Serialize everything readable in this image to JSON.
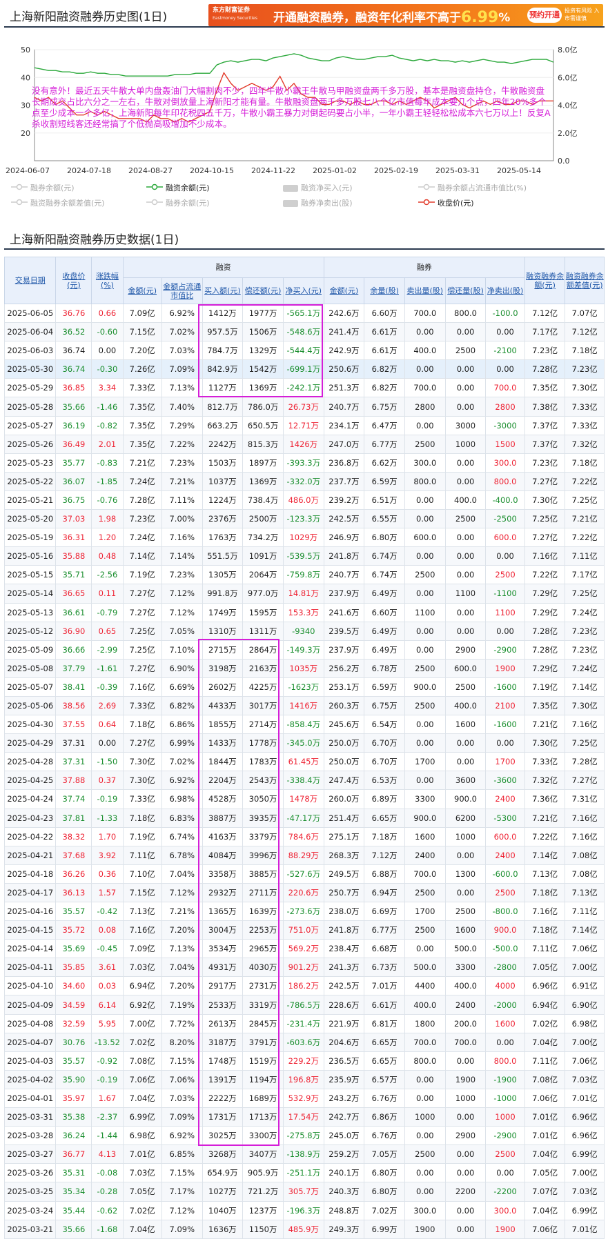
{
  "header": {
    "title": "上海新阳融资融券历史图(1日)"
  },
  "ad": {
    "brand": "东方财富证券",
    "brand_en": "Eastmoney Securities",
    "main_pre": "开通融资融券，融资年化利率不高于",
    "rate": "6.99",
    "pct_sign": "%",
    "cta": "预约开通",
    "risk": "投资有风险 入市需谨慎"
  },
  "chart_data": {
    "type": "line",
    "x_ticks": [
      "2024-06-07",
      "2024-07-18",
      "2024-08-27",
      "2024-10-15",
      "2024-11-22",
      "2025-01-02",
      "2025-02-19",
      "2025-03-31",
      "2025-05-14"
    ],
    "y_left": {
      "ticks": [
        "50",
        "40",
        "30",
        "20"
      ],
      "lim": [
        20,
        50
      ]
    },
    "y_right": {
      "ticks": [
        "8.0亿",
        "6.0亿",
        "4.0亿",
        "2.0亿",
        "0.0"
      ],
      "lim": [
        0,
        8
      ]
    },
    "series": [
      {
        "name": "融资余额(元)",
        "axis": "right",
        "color": "#2aa83a",
        "values": [
          6.7,
          6.6,
          6.5,
          6.5,
          6.4,
          6.4,
          6.3,
          6.3,
          6.4,
          6.3,
          6.3,
          6.2,
          6.2,
          6.1,
          6.1,
          6.1,
          6.1,
          6.1,
          6.1,
          6.1,
          6.2,
          6.2,
          6.2,
          6.3,
          6.3,
          6.3,
          6.9,
          7.1,
          7.2,
          7.1,
          7.2,
          7.3,
          7.3,
          7.2,
          7.4,
          7.5,
          7.6,
          7.7,
          7.6,
          7.4,
          7.3,
          7.2,
          7.2,
          7.4,
          7.5,
          7.4,
          7.3,
          7.3,
          7.4,
          7.5,
          7.5,
          7.6,
          7.4,
          7.3,
          7.2,
          7.3,
          7.2,
          7.3,
          7.2,
          7.2,
          7.1,
          7.2,
          7.1,
          7.2,
          7.3,
          7.2,
          7.1,
          7.1,
          7.0,
          7.1,
          7.2,
          7.3,
          7.3,
          7.3,
          7.1
        ]
      },
      {
        "name": "收盘价(元)",
        "axis": "left",
        "color": "#e23a2a",
        "values": [
          38,
          37,
          38,
          36,
          37,
          35,
          33,
          33,
          34,
          33,
          34,
          33,
          32,
          32,
          32,
          32,
          31,
          33,
          32,
          32,
          31,
          32,
          31,
          32,
          33,
          34,
          40,
          45,
          42,
          40,
          41,
          42,
          41,
          40,
          41,
          44,
          40,
          42,
          39,
          38,
          38,
          36,
          36,
          37,
          37,
          36,
          37,
          36,
          36,
          37,
          37,
          36,
          37,
          36,
          37,
          38,
          37,
          35,
          36,
          37,
          38,
          36,
          35,
          36,
          37,
          36,
          37,
          36,
          36,
          37,
          37,
          36,
          37,
          37,
          37
        ]
      }
    ],
    "annotation": "没有意外！最近五天牛散大单内盘轰油门大幅割肉不少，四年牛散小霸王牛散马甲融资盘两千多万股，基本是融资盘持仓，牛散融资盘长期成交占比六分之一左右，牛散对倒放量上海新阳才能有量。牛散融资盘两千多万股七八个亿市值每年成本要几个点，四年20%多个点至少成本一个多亿；上海新阳每年印花税四五千万，牛散小霸王暴力对倒起码要占小半，一年小霸王轻轻松松成本六七万以上！反复A杀收割短线客还经常搞了个低抛高吸增加不少成本。",
    "legend": [
      "融券余额(元)",
      "融资余额(元)",
      "融资净买入(元)",
      "融券余额占流通市值比(%)",
      "融资融券余额差值(元)",
      "融券余额(元)",
      "融券净卖出(股)",
      "收盘价(元)"
    ]
  },
  "section2": {
    "title": "上海新阳融资融券历史数据(1日)"
  },
  "table": {
    "group_rz": "融资",
    "group_rq": "融券",
    "h_date": "交易日期",
    "h_close": "收盘价(元)",
    "h_chg": "涨跌幅(%)",
    "h_rz_amt": "金额(元)",
    "h_rz_ratio": "金额占流通市值比",
    "h_buy": "买入额(元)",
    "h_repay": "偿还额(元)",
    "h_net": "净买入(元)",
    "h_rq_amt": "金额(元)",
    "h_rq_vol": "余量(股)",
    "h_sell": "卖出量(股)",
    "h_rq_repay": "偿还量(股)",
    "h_rq_net": "净卖出(股)",
    "h_total": "融资融券余额(元)",
    "h_diff": "融资融券余额差值(元)",
    "rows": [
      [
        "2025-06-05",
        "36.76",
        "0.66",
        "7.09亿",
        "6.92%",
        "1412万",
        "1977万",
        "-565.1万",
        "242.6万",
        "6.60万",
        "700.0",
        "800.0",
        "-100.0",
        "7.12亿",
        "7.07亿"
      ],
      [
        "2025-06-04",
        "36.52",
        "-0.60",
        "7.15亿",
        "7.02%",
        "957.5万",
        "1506万",
        "-548.6万",
        "241.4万",
        "6.61万",
        "0.00",
        "0.00",
        "0.00",
        "7.17亿",
        "7.12亿"
      ],
      [
        "2025-06-03",
        "36.74",
        "0.00",
        "7.20亿",
        "7.03%",
        "784.7万",
        "1329万",
        "-544.4万",
        "242.9万",
        "6.61万",
        "400.0",
        "2500",
        "-2100",
        "7.23亿",
        "7.18亿"
      ],
      [
        "2025-05-30",
        "36.74",
        "-0.30",
        "7.26亿",
        "7.09%",
        "842.9万",
        "1542万",
        "-699.1万",
        "250.6万",
        "6.82万",
        "0.00",
        "0.00",
        "0.00",
        "7.28亿",
        "7.23亿"
      ],
      [
        "2025-05-29",
        "36.85",
        "3.34",
        "7.33亿",
        "7.13%",
        "1127万",
        "1369万",
        "-242.1万",
        "251.3万",
        "6.82万",
        "700.0",
        "0.00",
        "700.0",
        "7.35亿",
        "7.30亿"
      ],
      [
        "2025-05-28",
        "35.66",
        "-1.46",
        "7.35亿",
        "7.40%",
        "812.7万",
        "786.0万",
        "26.73万",
        "240.7万",
        "6.75万",
        "2800",
        "0.00",
        "2800",
        "7.38亿",
        "7.33亿"
      ],
      [
        "2025-05-27",
        "36.19",
        "-0.82",
        "7.35亿",
        "7.29%",
        "663.2万",
        "650.5万",
        "12.71万",
        "234.1万",
        "6.47万",
        "0.00",
        "3000",
        "-3000",
        "7.37亿",
        "7.33亿"
      ],
      [
        "2025-05-26",
        "36.49",
        "2.01",
        "7.35亿",
        "7.22%",
        "2242万",
        "815.3万",
        "1426万",
        "247.0万",
        "6.77万",
        "2500",
        "1000",
        "1500",
        "7.37亿",
        "7.32亿"
      ],
      [
        "2025-05-23",
        "35.77",
        "-0.83",
        "7.21亿",
        "7.23%",
        "1503万",
        "1897万",
        "-393.3万",
        "236.8万",
        "6.62万",
        "300.0",
        "0.00",
        "300.0",
        "7.23亿",
        "7.18亿"
      ],
      [
        "2025-05-22",
        "36.07",
        "-1.85",
        "7.24亿",
        "7.21%",
        "1037万",
        "1369万",
        "-332.0万",
        "237.7万",
        "6.59万",
        "800.0",
        "0.00",
        "800.0",
        "7.27亿",
        "7.22亿"
      ],
      [
        "2025-05-21",
        "36.75",
        "-0.76",
        "7.28亿",
        "7.11%",
        "1224万",
        "738.4万",
        "486.0万",
        "239.2万",
        "6.51万",
        "0.00",
        "400.0",
        "-400.0",
        "7.30亿",
        "7.25亿"
      ],
      [
        "2025-05-20",
        "37.03",
        "1.98",
        "7.23亿",
        "7.00%",
        "2376万",
        "2500万",
        "-123.3万",
        "242.5万",
        "6.55万",
        "0.00",
        "2500",
        "-2500",
        "7.25亿",
        "7.21亿"
      ],
      [
        "2025-05-19",
        "36.31",
        "1.20",
        "7.24亿",
        "7.16%",
        "1763万",
        "734.2万",
        "1029万",
        "246.9万",
        "6.80万",
        "600.0",
        "0.00",
        "600.0",
        "7.27亿",
        "7.22亿"
      ],
      [
        "2025-05-16",
        "35.88",
        "0.48",
        "7.14亿",
        "7.14%",
        "551.5万",
        "1091万",
        "-539.5万",
        "241.8万",
        "6.74万",
        "0.00",
        "0.00",
        "0.00",
        "7.16亿",
        "7.11亿"
      ],
      [
        "2025-05-15",
        "35.71",
        "-2.56",
        "7.19亿",
        "7.23%",
        "1305万",
        "2064万",
        "-759.8万",
        "240.7万",
        "6.74万",
        "2500",
        "0.00",
        "2500",
        "7.22亿",
        "7.17亿"
      ],
      [
        "2025-05-14",
        "36.65",
        "0.11",
        "7.27亿",
        "7.12%",
        "991.8万",
        "977.0万",
        "14.81万",
        "237.9万",
        "6.49万",
        "0.00",
        "1100",
        "-1100",
        "7.29亿",
        "7.25亿"
      ],
      [
        "2025-05-13",
        "36.61",
        "-0.79",
        "7.27亿",
        "7.12%",
        "1749万",
        "1595万",
        "153.3万",
        "241.6万",
        "6.60万",
        "1100",
        "0.00",
        "1100",
        "7.29亿",
        "7.24亿"
      ],
      [
        "2025-05-12",
        "36.90",
        "0.65",
        "7.25亿",
        "7.05%",
        "1310万",
        "1311万",
        "-9340",
        "239.5万",
        "6.49万",
        "0.00",
        "0.00",
        "0.00",
        "7.28亿",
        "7.23亿"
      ],
      [
        "2025-05-09",
        "36.66",
        "-2.99",
        "7.25亿",
        "7.10%",
        "2715万",
        "2864万",
        "-149.3万",
        "237.9万",
        "6.49万",
        "0.00",
        "2900",
        "-2900",
        "7.28亿",
        "7.23亿"
      ],
      [
        "2025-05-08",
        "37.79",
        "-1.61",
        "7.27亿",
        "6.90%",
        "3198万",
        "2163万",
        "1035万",
        "256.2万",
        "6.78万",
        "2500",
        "600.0",
        "1900",
        "7.29亿",
        "7.24亿"
      ],
      [
        "2025-05-07",
        "38.41",
        "-0.39",
        "7.16亿",
        "6.69%",
        "2602万",
        "4225万",
        "-1623万",
        "253.1万",
        "6.59万",
        "900.0",
        "2500",
        "-1600",
        "7.19亿",
        "7.14亿"
      ],
      [
        "2025-05-06",
        "38.56",
        "2.69",
        "7.33亿",
        "6.82%",
        "4433万",
        "3017万",
        "1416万",
        "260.3万",
        "6.75万",
        "2500",
        "400.0",
        "2100",
        "7.35亿",
        "7.30亿"
      ],
      [
        "2025-04-30",
        "37.55",
        "0.64",
        "7.18亿",
        "6.86%",
        "1855万",
        "2714万",
        "-858.4万",
        "245.6万",
        "6.54万",
        "0.00",
        "1600",
        "-1600",
        "7.21亿",
        "7.16亿"
      ],
      [
        "2025-04-29",
        "37.31",
        "0.00",
        "7.27亿",
        "6.99%",
        "1433万",
        "1778万",
        "-345.0万",
        "250.0万",
        "6.70万",
        "0.00",
        "0.00",
        "0.00",
        "7.30亿",
        "7.25亿"
      ],
      [
        "2025-04-28",
        "37.31",
        "-1.50",
        "7.30亿",
        "7.02%",
        "1844万",
        "1783万",
        "61.45万",
        "250.0万",
        "6.70万",
        "1700",
        "0.00",
        "1700",
        "7.33亿",
        "7.28亿"
      ],
      [
        "2025-04-25",
        "37.88",
        "0.37",
        "7.30亿",
        "6.92%",
        "2204万",
        "2543万",
        "-338.4万",
        "247.4万",
        "6.53万",
        "0.00",
        "3600",
        "-3600",
        "7.32亿",
        "7.27亿"
      ],
      [
        "2025-04-24",
        "37.74",
        "-0.19",
        "7.33亿",
        "6.98%",
        "4528万",
        "3050万",
        "1478万",
        "260.0万",
        "6.89万",
        "3300",
        "900.0",
        "2400",
        "7.36亿",
        "7.31亿"
      ],
      [
        "2025-04-23",
        "37.81",
        "-1.33",
        "7.18亿",
        "6.83%",
        "3887万",
        "3935万",
        "-47.17万",
        "251.4万",
        "6.65万",
        "900.0",
        "6200",
        "-5300",
        "7.21亿",
        "7.16亿"
      ],
      [
        "2025-04-22",
        "38.32",
        "1.70",
        "7.19亿",
        "6.74%",
        "4163万",
        "3379万",
        "784.6万",
        "275.1万",
        "7.18万",
        "1600",
        "1000",
        "600.0",
        "7.22亿",
        "7.16亿"
      ],
      [
        "2025-04-21",
        "37.68",
        "3.92",
        "7.11亿",
        "6.78%",
        "4084万",
        "3996万",
        "88.29万",
        "268.3万",
        "7.12万",
        "2400",
        "0.00",
        "2400",
        "7.14亿",
        "7.08亿"
      ],
      [
        "2025-04-18",
        "36.26",
        "0.36",
        "7.10亿",
        "7.04%",
        "3358万",
        "3885万",
        "-527.6万",
        "249.5万",
        "6.88万",
        "700.0",
        "1300",
        "-600.0",
        "7.13亿",
        "7.08亿"
      ],
      [
        "2025-04-17",
        "36.13",
        "1.57",
        "7.15亿",
        "7.12%",
        "2932万",
        "2711万",
        "220.6万",
        "250.7万",
        "6.94万",
        "2500",
        "0.00",
        "2500",
        "7.18亿",
        "7.13亿"
      ],
      [
        "2025-04-16",
        "35.57",
        "-0.42",
        "7.13亿",
        "7.21%",
        "1365万",
        "1639万",
        "-273.6万",
        "238.0万",
        "6.69万",
        "1700",
        "2500",
        "-800.0",
        "7.16亿",
        "7.11亿"
      ],
      [
        "2025-04-15",
        "35.72",
        "0.08",
        "7.16亿",
        "7.20%",
        "3004万",
        "2253万",
        "751.0万",
        "241.8万",
        "6.77万",
        "2500",
        "1600",
        "900.0",
        "7.18亿",
        "7.14亿"
      ],
      [
        "2025-04-14",
        "35.69",
        "-0.45",
        "7.09亿",
        "7.13%",
        "3534万",
        "2965万",
        "569.2万",
        "238.4万",
        "6.68万",
        "0.00",
        "500.0",
        "-500.0",
        "7.11亿",
        "7.06亿"
      ],
      [
        "2025-04-11",
        "35.85",
        "3.61",
        "7.03亿",
        "7.04%",
        "4931万",
        "4030万",
        "901.2万",
        "241.3万",
        "6.73万",
        "500.0",
        "3300",
        "-2800",
        "7.05亿",
        "7.00亿"
      ],
      [
        "2025-04-10",
        "34.60",
        "0.03",
        "6.94亿",
        "7.20%",
        "2917万",
        "2731万",
        "186.2万",
        "242.5万",
        "7.01万",
        "4400",
        "400.0",
        "4000",
        "6.96亿",
        "6.91亿"
      ],
      [
        "2025-04-09",
        "34.59",
        "6.14",
        "6.92亿",
        "7.19%",
        "2533万",
        "3319万",
        "-786.5万",
        "228.6万",
        "6.61万",
        "400.0",
        "2400",
        "-2000",
        "6.94亿",
        "6.90亿"
      ],
      [
        "2025-04-08",
        "32.59",
        "5.95",
        "7.00亿",
        "7.72%",
        "2613万",
        "2845万",
        "-231.4万",
        "221.9万",
        "6.81万",
        "1800",
        "200.0",
        "1600",
        "7.02亿",
        "6.98亿"
      ],
      [
        "2025-04-07",
        "30.76",
        "-13.52",
        "7.02亿",
        "8.20%",
        "3187万",
        "3791万",
        "-603.6万",
        "204.6万",
        "6.65万",
        "700.0",
        "700.0",
        "0.00",
        "7.04亿",
        "7.00亿"
      ],
      [
        "2025-04-03",
        "35.57",
        "-0.92",
        "7.08亿",
        "7.15%",
        "1748万",
        "1519万",
        "229.2万",
        "236.5万",
        "6.65万",
        "800.0",
        "0.00",
        "800.0",
        "7.11亿",
        "7.06亿"
      ],
      [
        "2025-04-02",
        "35.90",
        "-0.19",
        "7.06亿",
        "7.06%",
        "1391万",
        "1194万",
        "196.8万",
        "235.9万",
        "6.57万",
        "0.00",
        "1900",
        "-1900",
        "7.08亿",
        "7.03亿"
      ],
      [
        "2025-04-01",
        "35.97",
        "1.67",
        "7.04亿",
        "7.03%",
        "2222万",
        "1689万",
        "532.9万",
        "243.2万",
        "6.76万",
        "0.00",
        "1000",
        "-1000",
        "7.06亿",
        "7.01亿"
      ],
      [
        "2025-03-31",
        "35.38",
        "-2.37",
        "6.99亿",
        "7.09%",
        "1731万",
        "1713万",
        "17.54万",
        "242.7万",
        "6.86万",
        "1000",
        "0.00",
        "1000",
        "7.01亿",
        "6.96亿"
      ],
      [
        "2025-03-28",
        "36.24",
        "-1.44",
        "6.98亿",
        "6.92%",
        "3025万",
        "3300万",
        "-275.8万",
        "245.0万",
        "6.76万",
        "0.00",
        "2900",
        "-2900",
        "7.01亿",
        "6.96亿"
      ],
      [
        "2025-03-27",
        "36.77",
        "4.13",
        "7.01亿",
        "6.85%",
        "3268万",
        "3407万",
        "-138.9万",
        "259.2万",
        "7.05万",
        "2500",
        "0.00",
        "2500",
        "7.04亿",
        "6.99亿"
      ],
      [
        "2025-03-26",
        "35.31",
        "-0.08",
        "7.03亿",
        "7.15%",
        "654.9万",
        "905.9万",
        "-251.1万",
        "240.1万",
        "6.80万",
        "0.00",
        "0.00",
        "0.00",
        "7.05亿",
        "7.00亿"
      ],
      [
        "2025-03-25",
        "35.34",
        "-0.28",
        "7.05亿",
        "7.17%",
        "1027万",
        "721.2万",
        "305.7万",
        "240.3万",
        "6.80万",
        "0.00",
        "2200",
        "-2200",
        "7.07亿",
        "7.03亿"
      ],
      [
        "2025-03-24",
        "35.44",
        "-0.62",
        "7.02亿",
        "7.12%",
        "1040万",
        "1237万",
        "-196.3万",
        "248.8万",
        "7.02万",
        "300.0",
        "0.00",
        "300.0",
        "7.04亿",
        "6.99亿"
      ],
      [
        "2025-03-21",
        "35.66",
        "-1.68",
        "7.04亿",
        "7.09%",
        "1636万",
        "1150万",
        "485.9万",
        "249.3万",
        "6.99万",
        "1900",
        "0.00",
        "1900",
        "7.06亿",
        "7.01亿"
      ]
    ]
  }
}
